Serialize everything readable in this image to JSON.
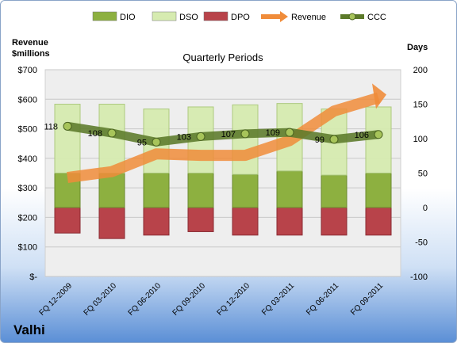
{
  "chart_data": {
    "type": "bar",
    "title": "Quarterly Periods",
    "company": "Valhi",
    "y_left_label_line1": "Revenue",
    "y_left_label_line2": "$millions",
    "y_right_label": "Days",
    "categories": [
      "FQ 12-2009",
      "FQ 03-2010",
      "FQ 06-2010",
      "FQ 09-2010",
      "FQ 12-2010",
      "FQ 03-2011",
      "FQ 06-2011",
      "FQ 09-2011"
    ],
    "left_axis": {
      "min": 0,
      "max": 700,
      "ticks": [
        "$-",
        "$100",
        "$200",
        "$300",
        "$400",
        "$500",
        "$600",
        "$700"
      ]
    },
    "right_axis": {
      "min": -100,
      "max": 200,
      "ticks": [
        "-100",
        "-50",
        "0",
        "50",
        "100",
        "150",
        "200"
      ]
    },
    "legend": [
      {
        "name": "DIO",
        "kind": "bar",
        "color": "#8db040"
      },
      {
        "name": "DSO",
        "kind": "bar",
        "color": "#d6ebb0"
      },
      {
        "name": "DPO",
        "kind": "bar",
        "color": "#b8434a"
      },
      {
        "name": "Revenue",
        "kind": "arrow",
        "color": "#f08c3a"
      },
      {
        "name": "CCC",
        "kind": "line-marker",
        "color": "#5c7a2a"
      }
    ],
    "series": [
      {
        "name": "DIO",
        "axis": "right",
        "values": [
          50,
          50,
          50,
          50,
          48,
          53,
          47,
          50
        ]
      },
      {
        "name": "DSO",
        "axis": "right",
        "values": [
          150,
          150,
          143,
          146,
          149,
          151,
          143,
          146
        ]
      },
      {
        "name": "DPO",
        "axis": "right",
        "values": [
          -37,
          -45,
          -40,
          -35,
          -40,
          -40,
          -40,
          -40
        ]
      },
      {
        "name": "Revenue",
        "axis": "left",
        "values": [
          335,
          355,
          415,
          410,
          410,
          460,
          560,
          605
        ]
      },
      {
        "name": "CCC",
        "axis": "right",
        "values": [
          118,
          108,
          95,
          103,
          107,
          109,
          99,
          106
        ]
      }
    ],
    "ccc_labels": [
      "118",
      "108",
      "95",
      "103",
      "107",
      "109",
      "99",
      "106"
    ]
  }
}
